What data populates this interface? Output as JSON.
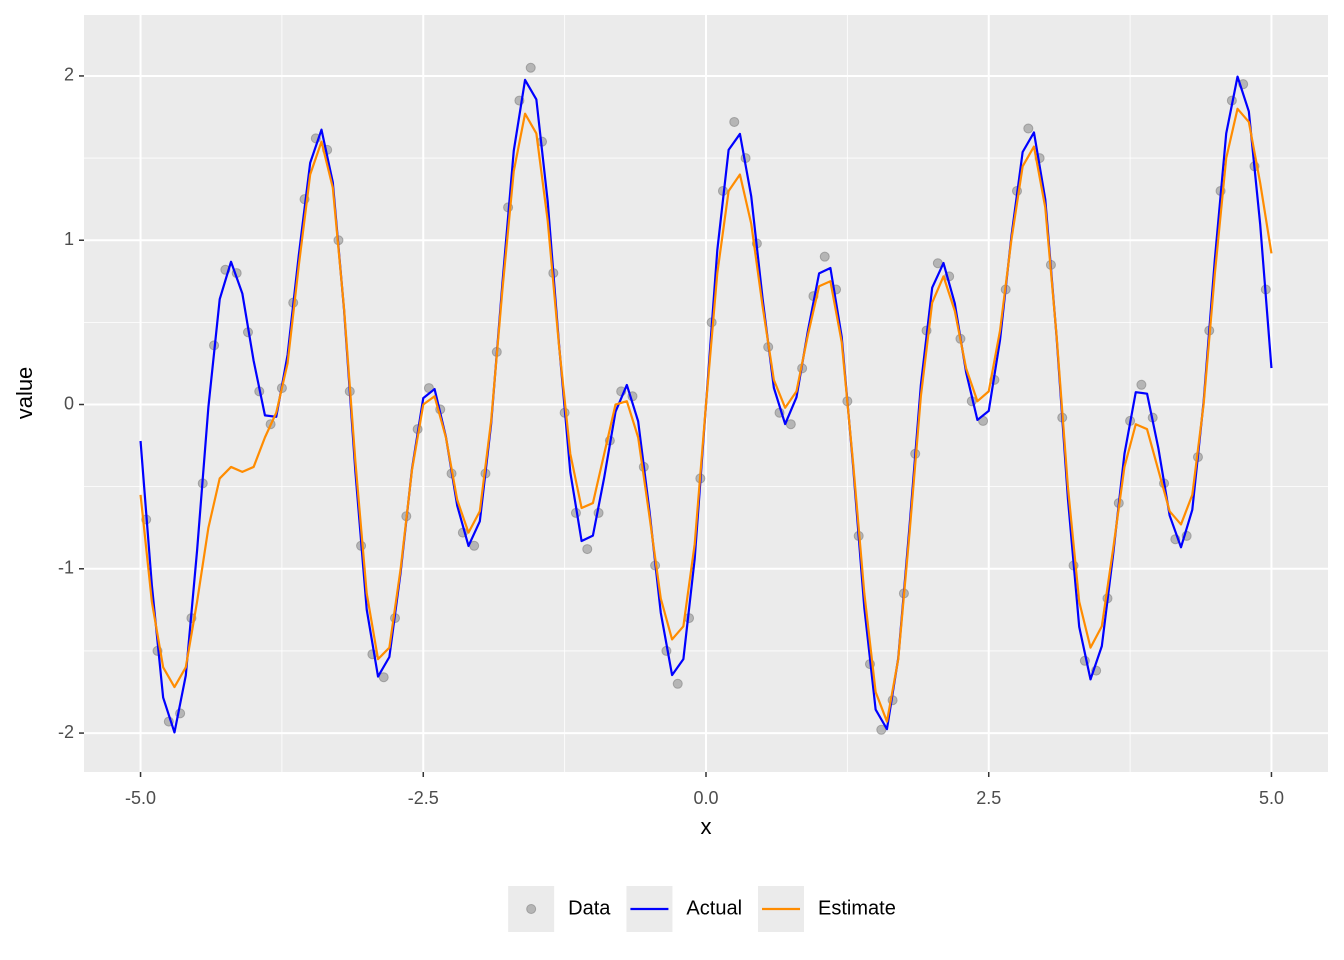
{
  "chart_data": {
    "type": "line",
    "xlabel": "x",
    "ylabel": "value",
    "xlim": [
      -5.5,
      5.5
    ],
    "ylim": [
      -2.237,
      2.371
    ],
    "xticks": [
      {
        "value": -5,
        "label": "-5.0"
      },
      -2.5,
      {
        "value": 0,
        "label": "0.0"
      },
      2.5,
      {
        "value": 5,
        "label": "5.0"
      }
    ],
    "yticks": [
      -2,
      -1,
      0,
      1,
      2
    ],
    "grid": true,
    "legend": "bottom",
    "series": [
      {
        "name": "Data",
        "type": "scatter",
        "color": "#808080",
        "x": [
          -4.95,
          -4.85,
          -4.75,
          -4.65,
          -4.55,
          -4.45,
          -4.35,
          -4.25,
          -4.15,
          -4.05,
          -3.95,
          -3.85,
          -3.75,
          -3.65,
          -3.55,
          -3.45,
          -3.35,
          -3.25,
          -3.15,
          -3.05,
          -2.95,
          -2.85,
          -2.75,
          -2.65,
          -2.55,
          -2.45,
          -2.35,
          -2.25,
          -2.15,
          -2.05,
          -1.95,
          -1.85,
          -1.75,
          -1.65,
          -1.55,
          -1.45,
          -1.35,
          -1.25,
          -1.15,
          -1.05,
          -0.95,
          -0.85,
          -0.75,
          -0.65,
          -0.55,
          -0.45,
          -0.35,
          -0.25,
          -0.15,
          -0.05,
          0.05,
          0.15,
          0.25,
          0.35,
          0.45,
          0.55,
          0.65,
          0.75,
          0.85,
          0.95,
          1.05,
          1.15,
          1.25,
          1.35,
          1.45,
          1.55,
          1.65,
          1.75,
          1.85,
          1.95,
          2.05,
          2.15,
          2.25,
          2.35,
          2.45,
          2.55,
          2.65,
          2.75,
          2.85,
          2.95,
          3.05,
          3.15,
          3.25,
          3.35,
          3.45,
          3.55,
          3.65,
          3.75,
          3.85,
          3.95,
          4.05,
          4.15,
          4.25,
          4.35,
          4.45,
          4.55,
          4.65,
          4.75,
          4.85,
          4.95
        ],
        "values": [
          -0.7,
          -1.5,
          -1.93,
          -1.88,
          -1.3,
          -0.48,
          0.36,
          0.82,
          0.8,
          0.44,
          0.08,
          -0.12,
          0.1,
          0.62,
          1.25,
          1.62,
          1.55,
          1.0,
          0.08,
          -0.86,
          -1.52,
          -1.66,
          -1.3,
          -0.68,
          -0.15,
          0.1,
          -0.03,
          -0.42,
          -0.78,
          -0.86,
          -0.42,
          0.32,
          1.2,
          1.85,
          2.05,
          1.6,
          0.8,
          -0.05,
          -0.66,
          -0.88,
          -0.66,
          -0.22,
          0.08,
          0.05,
          -0.38,
          -0.98,
          -1.5,
          -1.7,
          -1.3,
          -0.45,
          0.5,
          1.3,
          1.72,
          1.5,
          0.98,
          0.35,
          -0.05,
          -0.12,
          0.22,
          0.66,
          0.9,
          0.7,
          0.02,
          -0.8,
          -1.58,
          -1.98,
          -1.8,
          -1.15,
          -0.3,
          0.45,
          0.86,
          0.78,
          0.4,
          0.02,
          -0.1,
          0.15,
          0.7,
          1.3,
          1.68,
          1.5,
          0.85,
          -0.08,
          -0.98,
          -1.56,
          -1.62,
          -1.18,
          -0.6,
          -0.1,
          0.12,
          -0.08,
          -0.48,
          -0.82,
          -0.8,
          -0.32,
          0.45,
          1.3,
          1.85,
          1.95,
          1.45,
          0.7
        ]
      },
      {
        "name": "Actual",
        "type": "line",
        "color": "#0000ff",
        "x": [
          -5,
          -4.9,
          -4.8,
          -4.7,
          -4.6,
          -4.5,
          -4.4,
          -4.3,
          -4.2,
          -4.1,
          -4,
          -3.9,
          -3.8,
          -3.7,
          -3.6,
          -3.5,
          -3.4,
          -3.3,
          -3.2,
          -3.1,
          -3,
          -2.9,
          -2.8,
          -2.7,
          -2.6,
          -2.5,
          -2.4,
          -2.3,
          -2.2,
          -2.1,
          -2,
          -1.9,
          -1.8,
          -1.7,
          -1.6,
          -1.5,
          -1.4,
          -1.3,
          -1.2,
          -1.1,
          -1,
          -0.9,
          -0.8,
          -0.7,
          -0.6,
          -0.5,
          -0.4,
          -0.3,
          -0.2,
          -0.1,
          0,
          0.1,
          0.2,
          0.3,
          0.4,
          0.5,
          0.6,
          0.7,
          0.8,
          0.9,
          1,
          1.1,
          1.2,
          1.3,
          1.4,
          1.5,
          1.6,
          1.7,
          1.8,
          1.9,
          2,
          2.1,
          2.2,
          2.3,
          2.4,
          2.5,
          2.6,
          2.7,
          2.8,
          2.9,
          3,
          3.1,
          3.2,
          3.3,
          3.4,
          3.5,
          3.6,
          3.7,
          3.8,
          3.9,
          4,
          4.1,
          4.2,
          4.3,
          4.4,
          4.5,
          4.6,
          4.7,
          4.8,
          4.9,
          5
        ],
        "values": [
          -0.222,
          -1.099,
          -1.784,
          -1.996,
          -1.65,
          -0.888,
          -0.015,
          0.641,
          0.869,
          0.676,
          0.266,
          -0.066,
          -0.075,
          0.301,
          0.913,
          1.471,
          1.673,
          1.353,
          0.572,
          -0.412,
          -1.249,
          -1.656,
          -1.537,
          -1.021,
          -0.393,
          0.039,
          0.094,
          -0.196,
          -0.615,
          -0.861,
          -0.711,
          -0.119,
          0.739,
          1.544,
          1.976,
          1.857,
          1.238,
          0.369,
          -0.412,
          -0.831,
          -0.798,
          -0.444,
          -0.044,
          0.119,
          -0.102,
          -0.647,
          -1.267,
          -1.647,
          -1.55,
          -0.94,
          0,
          0.94,
          1.55,
          1.647,
          1.267,
          0.647,
          0.102,
          -0.119,
          0.044,
          0.444,
          0.798,
          0.831,
          0.412,
          -0.369,
          -1.238,
          -1.857,
          -1.976,
          -1.544,
          -0.739,
          0.119,
          0.711,
          0.861,
          0.615,
          0.196,
          -0.094,
          -0.039,
          0.393,
          1.021,
          1.537,
          1.656,
          1.249,
          0.412,
          -0.572,
          -1.353,
          -1.673,
          -1.471,
          -0.913,
          -0.301,
          0.075,
          0.066,
          -0.266,
          -0.676,
          -0.869,
          -0.641,
          0.015,
          0.888,
          1.65,
          1.996,
          1.784,
          1.099,
          0.222
        ]
      },
      {
        "name": "Estimate",
        "type": "line",
        "color": "#ff8c00",
        "x": [
          -5,
          -4.9,
          -4.8,
          -4.7,
          -4.6,
          -4.5,
          -4.4,
          -4.3,
          -4.2,
          -4.1,
          -4,
          -3.9,
          -3.8,
          -3.7,
          -3.6,
          -3.5,
          -3.4,
          -3.3,
          -3.2,
          -3.1,
          -3,
          -2.9,
          -2.8,
          -2.7,
          -2.6,
          -2.5,
          -2.4,
          -2.3,
          -2.2,
          -2.1,
          -2,
          -1.9,
          -1.8,
          -1.7,
          -1.6,
          -1.5,
          -1.4,
          -1.3,
          -1.2,
          -1.1,
          -1,
          -0.9,
          -0.8,
          -0.7,
          -0.6,
          -0.5,
          -0.4,
          -0.3,
          -0.2,
          -0.1,
          0,
          0.1,
          0.2,
          0.3,
          0.4,
          0.5,
          0.6,
          0.7,
          0.8,
          0.9,
          1,
          1.1,
          1.2,
          1.3,
          1.4,
          1.5,
          1.6,
          1.7,
          1.8,
          1.9,
          2,
          2.1,
          2.2,
          2.3,
          2.4,
          2.5,
          2.6,
          2.7,
          2.8,
          2.9,
          3,
          3.1,
          3.2,
          3.3,
          3.4,
          3.5,
          3.6,
          3.7,
          3.8,
          3.9,
          4,
          4.1,
          4.2,
          4.3,
          4.4,
          4.5,
          4.6,
          4.7,
          4.8,
          4.9,
          5
        ],
        "values": [
          -0.55,
          -1.2,
          -1.6,
          -1.72,
          -1.6,
          -1.2,
          -0.75,
          -0.45,
          -0.38,
          -0.41,
          -0.38,
          -0.2,
          -0.05,
          0.25,
          0.85,
          1.4,
          1.6,
          1.32,
          0.58,
          -0.35,
          -1.15,
          -1.55,
          -1.48,
          -1.0,
          -0.4,
          0.0,
          0.05,
          -0.2,
          -0.58,
          -0.78,
          -0.65,
          -0.1,
          0.7,
          1.42,
          1.77,
          1.65,
          1.12,
          0.36,
          -0.3,
          -0.63,
          -0.6,
          -0.3,
          0.0,
          0.02,
          -0.2,
          -0.68,
          -1.18,
          -1.43,
          -1.35,
          -0.85,
          0.0,
          0.8,
          1.3,
          1.4,
          1.1,
          0.6,
          0.15,
          -0.02,
          0.08,
          0.42,
          0.72,
          0.75,
          0.38,
          -0.35,
          -1.15,
          -1.75,
          -1.93,
          -1.55,
          -0.78,
          0.05,
          0.62,
          0.78,
          0.57,
          0.22,
          0.02,
          0.08,
          0.45,
          1.0,
          1.45,
          1.57,
          1.2,
          0.42,
          -0.5,
          -1.2,
          -1.48,
          -1.35,
          -0.88,
          -0.38,
          -0.12,
          -0.15,
          -0.4,
          -0.65,
          -0.73,
          -0.55,
          0.0,
          0.8,
          1.5,
          1.8,
          1.72,
          1.35,
          0.92
        ]
      }
    ]
  }
}
